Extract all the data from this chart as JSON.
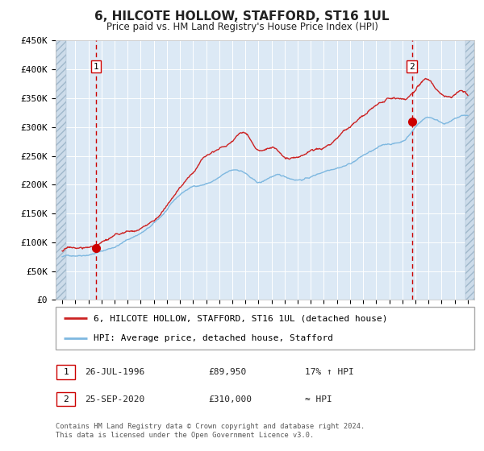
{
  "title": "6, HILCOTE HOLLOW, STAFFORD, ST16 1UL",
  "subtitle": "Price paid vs. HM Land Registry's House Price Index (HPI)",
  "ylim": [
    0,
    450000
  ],
  "yticks": [
    0,
    50000,
    100000,
    150000,
    200000,
    250000,
    300000,
    350000,
    400000,
    450000
  ],
  "ytick_labels": [
    "£0",
    "£50K",
    "£100K",
    "£150K",
    "£200K",
    "£250K",
    "£300K",
    "£350K",
    "£400K",
    "£450K"
  ],
  "background_color": "#dce9f5",
  "grid_color": "#ffffff",
  "line_color_hpi": "#7eb8e0",
  "line_color_price": "#cc2222",
  "dot_color": "#cc0000",
  "sale1_year": 1996.57,
  "sale1_price": 89950,
  "sale2_year": 2020.73,
  "sale2_price": 310000,
  "legend_label1": "6, HILCOTE HOLLOW, STAFFORD, ST16 1UL (detached house)",
  "legend_label2": "HPI: Average price, detached house, Stafford",
  "footer": "Contains HM Land Registry data © Crown copyright and database right 2024.\nThis data is licensed under the Open Government Licence v3.0.",
  "dashed_line_color": "#cc0000",
  "box_color": "#cc0000",
  "xlim_start": 1993.5,
  "xlim_end": 2025.5,
  "hpi_keypoints": [
    [
      1994.0,
      75000
    ],
    [
      1995.0,
      78000
    ],
    [
      1996.0,
      82000
    ],
    [
      1997.0,
      88000
    ],
    [
      1998.0,
      96000
    ],
    [
      1999.0,
      108000
    ],
    [
      2000.0,
      120000
    ],
    [
      2001.0,
      135000
    ],
    [
      2002.0,
      158000
    ],
    [
      2003.0,
      182000
    ],
    [
      2004.0,
      196000
    ],
    [
      2005.0,
      202000
    ],
    [
      2006.0,
      212000
    ],
    [
      2007.0,
      222000
    ],
    [
      2008.0,
      218000
    ],
    [
      2009.0,
      200000
    ],
    [
      2010.0,
      210000
    ],
    [
      2011.0,
      208000
    ],
    [
      2012.0,
      205000
    ],
    [
      2013.0,
      210000
    ],
    [
      2014.0,
      220000
    ],
    [
      2015.0,
      230000
    ],
    [
      2016.0,
      238000
    ],
    [
      2017.0,
      252000
    ],
    [
      2018.0,
      262000
    ],
    [
      2019.0,
      270000
    ],
    [
      2020.0,
      275000
    ],
    [
      2021.0,
      300000
    ],
    [
      2022.0,
      318000
    ],
    [
      2023.0,
      310000
    ],
    [
      2024.0,
      315000
    ],
    [
      2025.0,
      320000
    ]
  ],
  "prop_keypoints": [
    [
      1994.0,
      85000
    ],
    [
      1995.0,
      90000
    ],
    [
      1996.0,
      90000
    ],
    [
      1997.0,
      98000
    ],
    [
      1998.0,
      106000
    ],
    [
      1999.0,
      112000
    ],
    [
      2000.0,
      118000
    ],
    [
      2001.0,
      132000
    ],
    [
      2002.0,
      158000
    ],
    [
      2003.0,
      188000
    ],
    [
      2004.0,
      215000
    ],
    [
      2005.0,
      248000
    ],
    [
      2006.0,
      265000
    ],
    [
      2007.0,
      278000
    ],
    [
      2008.0,
      295000
    ],
    [
      2009.0,
      265000
    ],
    [
      2010.0,
      268000
    ],
    [
      2011.0,
      252000
    ],
    [
      2012.0,
      248000
    ],
    [
      2013.0,
      258000
    ],
    [
      2014.0,
      265000
    ],
    [
      2015.0,
      280000
    ],
    [
      2016.0,
      298000
    ],
    [
      2017.0,
      316000
    ],
    [
      2018.0,
      332000
    ],
    [
      2019.0,
      340000
    ],
    [
      2020.0,
      342000
    ],
    [
      2021.0,
      356000
    ],
    [
      2022.0,
      375000
    ],
    [
      2023.0,
      352000
    ],
    [
      2024.0,
      355000
    ],
    [
      2025.0,
      355000
    ]
  ]
}
